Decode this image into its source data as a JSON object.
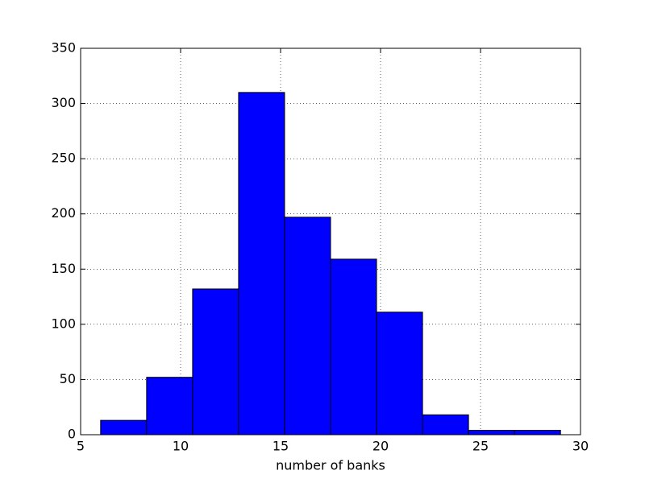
{
  "chart_data": {
    "type": "histogram",
    "xlabel": "number of banks",
    "bins": [
      6.0,
      8.3,
      10.6,
      12.9,
      15.2,
      17.5,
      19.8,
      22.1,
      24.4,
      26.7,
      29.0
    ],
    "values": [
      13,
      52,
      132,
      310,
      197,
      159,
      111,
      18,
      4,
      4
    ],
    "color": "#0000ff",
    "xlim": [
      5,
      30
    ],
    "xticks": [
      5,
      10,
      15,
      20,
      25,
      30
    ],
    "ylim": [
      0,
      350
    ],
    "yticks": [
      0,
      50,
      100,
      150,
      200,
      250,
      300,
      350
    ],
    "grid": true
  }
}
